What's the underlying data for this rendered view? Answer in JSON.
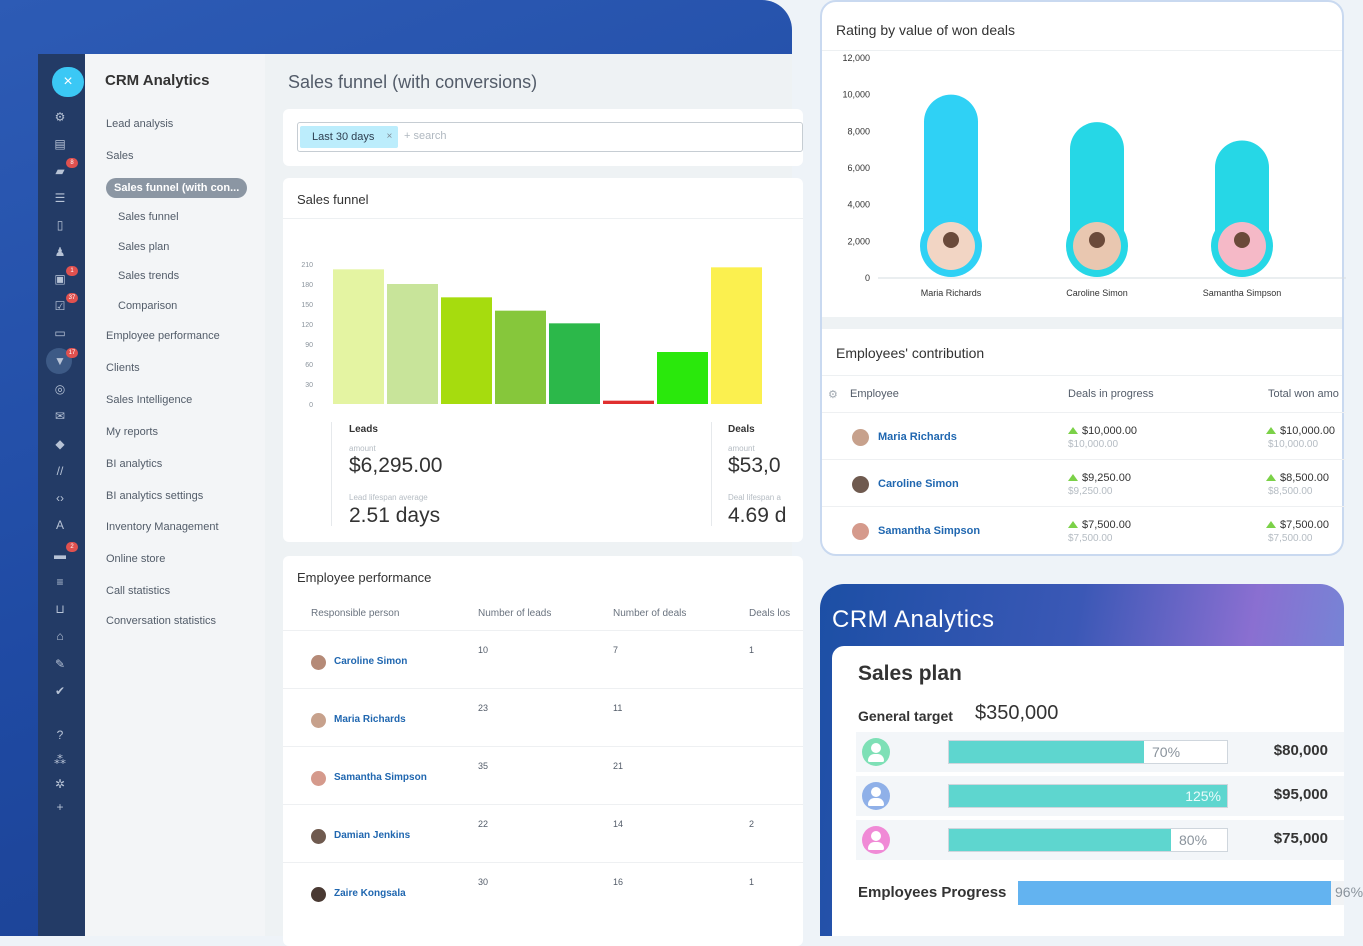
{
  "crm": {
    "brand": "CRM Analytics",
    "close_icon": "×",
    "menu": [
      {
        "label": "Lead analysis",
        "level": "top"
      },
      {
        "label": "Sales",
        "level": "top"
      },
      {
        "label": "Sales funnel (with con...",
        "level": "active"
      },
      {
        "label": "Sales funnel",
        "level": "sub"
      },
      {
        "label": "Sales plan",
        "level": "sub"
      },
      {
        "label": "Sales trends",
        "level": "sub"
      },
      {
        "label": "Comparison",
        "level": "sub"
      },
      {
        "label": "Employee performance",
        "level": "top"
      },
      {
        "label": "Clients",
        "level": "top"
      },
      {
        "label": "Sales Intelligence",
        "level": "top"
      },
      {
        "label": "My reports",
        "level": "top"
      },
      {
        "label": "BI analytics",
        "level": "top"
      },
      {
        "label": "BI analytics settings",
        "level": "top"
      },
      {
        "label": "Inventory Management",
        "level": "top"
      },
      {
        "label": "Online store",
        "level": "top"
      },
      {
        "label": "Call statistics",
        "level": "top"
      },
      {
        "label": "Conversation statistics",
        "level": "top"
      }
    ],
    "iconbar_badges": [
      "8",
      "1",
      "37",
      "17",
      "2"
    ],
    "page_title": "Sales funnel (with conversions)",
    "filter": {
      "tag": "Last 30 days",
      "tag_remove": "×",
      "search_placeholder": "+ search"
    },
    "funnel": {
      "title": "Sales funnel",
      "leads_label": "Leads",
      "amount_caption": "amount",
      "leads_amount": "$6,295.00",
      "lead_lifespan_caption": "Lead lifespan average",
      "lead_lifespan": "2.51 days",
      "deals_label": "Deals",
      "deals_amount": "$53,0",
      "deal_lifespan_caption": "Deal lifespan a",
      "deal_lifespan": "4.69 d"
    },
    "employee_perf": {
      "title": "Employee performance",
      "headers": [
        "Responsible person",
        "Number of leads",
        "Number of deals",
        "Deals los"
      ],
      "rows": [
        {
          "name": "Caroline Simon",
          "leads": "10",
          "deals": "7",
          "lost": "1"
        },
        {
          "name": "Maria Richards",
          "leads": "23",
          "deals": "11",
          "lost": ""
        },
        {
          "name": "Samantha Simpson",
          "leads": "35",
          "deals": "21",
          "lost": ""
        },
        {
          "name": "Damian Jenkins",
          "leads": "22",
          "deals": "14",
          "lost": "2"
        },
        {
          "name": "Zaire Kongsala",
          "leads": "30",
          "deals": "16",
          "lost": "1"
        }
      ]
    }
  },
  "chart_data": [
    {
      "type": "bar",
      "title": "Sales funnel",
      "ylim": [
        0,
        210
      ],
      "yticks": [
        0,
        30,
        60,
        90,
        120,
        150,
        180,
        210
      ],
      "series": [
        {
          "values": [
            202,
            180,
            160,
            140,
            121,
            5,
            78,
            205
          ]
        }
      ],
      "colors": [
        "#e4f4a2",
        "#c8e49a",
        "#a6dc0e",
        "#86c73b",
        "#2cb84a",
        "#e02f2f",
        "#2ae80c",
        "#fbf04f"
      ]
    },
    {
      "type": "bar",
      "title": "Rating by value of won deals",
      "categories": [
        "Maria Richards",
        "Caroline Simon",
        "Samantha Simpson"
      ],
      "values": [
        10000,
        8500,
        7500
      ],
      "ylim": [
        0,
        12000
      ],
      "yticks": [
        "0",
        "2,000",
        "4,000",
        "6,000",
        "8,000",
        "10,000",
        "12,000"
      ]
    }
  ],
  "won_deals": {
    "title": "Rating by value of won deals"
  },
  "contribution": {
    "title": "Employees' contribution",
    "headers": [
      "Employee",
      "Deals in progress",
      "Total won amo"
    ],
    "rows": [
      {
        "name": "Maria Richards",
        "progress": "$10,000.00",
        "progress_sub": "$10,000.00",
        "won": "$10,000.00",
        "won_sub": "$10,000.00"
      },
      {
        "name": "Caroline Simon",
        "progress": "$9,250.00",
        "progress_sub": "$9,250.00",
        "won": "$8,500.00",
        "won_sub": "$8,500.00"
      },
      {
        "name": "Samantha Simpson",
        "progress": "$7,500.00",
        "progress_sub": "$7,500.00",
        "won": "$7,500.00",
        "won_sub": "$7,500.00"
      }
    ]
  },
  "promo": {
    "title": "CRM Analytics",
    "sales_plan": "Sales plan",
    "general_target_label": "General target",
    "general_target_value": "$350,000",
    "rows": [
      {
        "percent": 70,
        "percent_label": "70%",
        "amount": "$80,000",
        "icon_color": "#7ee0b6"
      },
      {
        "percent": 125,
        "percent_label": "125%",
        "amount": "$95,000",
        "icon_color": "#8fb0e8"
      },
      {
        "percent": 80,
        "percent_label": "80%",
        "amount": "$75,000",
        "icon_color": "#f08ad6"
      }
    ],
    "employees_progress_label": "Employees Progress",
    "employees_progress": 96,
    "employees_progress_label_pct": "96%"
  }
}
